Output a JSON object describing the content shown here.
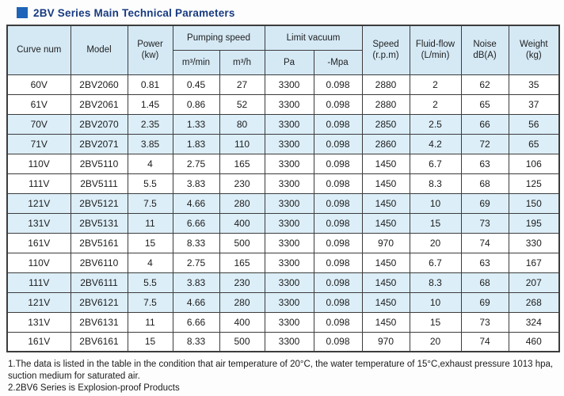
{
  "title": "2BV Series Main Technical Parameters",
  "colors": {
    "title_text": "#173a80",
    "title_square": "#1e64b8",
    "header_bg": "#d5e9f5",
    "shaded_row_bg": "#dceef8",
    "border": "#3c3c3c"
  },
  "table": {
    "headers": {
      "curve_num": "Curve num",
      "model": "Model",
      "power_l1": "Power",
      "power_l2": "(kw)",
      "pumping_speed": "Pumping speed",
      "pumping_sub_min": "m³/min",
      "pumping_sub_h": "m³/h",
      "limit_vacuum": "Limit vacuum",
      "limit_sub_pa": "Pa",
      "limit_sub_mpa": "-Mpa",
      "speed_l1": "Speed",
      "speed_l2": "(r.p.m)",
      "fluid_l1": "Fluid-flow",
      "fluid_l2": "(L/min)",
      "noise_l1": "Noise",
      "noise_l2": "dB(A)",
      "weight_l1": "Weight",
      "weight_l2": "(kg)"
    },
    "rows": [
      {
        "cells": [
          "60V",
          "2BV2060",
          "0.81",
          "0.45",
          "27",
          "3300",
          "0.098",
          "2880",
          "2",
          "62",
          "35"
        ],
        "shaded": false
      },
      {
        "cells": [
          "61V",
          "2BV2061",
          "1.45",
          "0.86",
          "52",
          "3300",
          "0.098",
          "2880",
          "2",
          "65",
          "37"
        ],
        "shaded": false
      },
      {
        "cells": [
          "70V",
          "2BV2070",
          "2.35",
          "1.33",
          "80",
          "3300",
          "0.098",
          "2850",
          "2.5",
          "66",
          "56"
        ],
        "shaded": true
      },
      {
        "cells": [
          "71V",
          "2BV2071",
          "3.85",
          "1.83",
          "110",
          "3300",
          "0.098",
          "2860",
          "4.2",
          "72",
          "65"
        ],
        "shaded": true
      },
      {
        "cells": [
          "110V",
          "2BV5110",
          "4",
          "2.75",
          "165",
          "3300",
          "0.098",
          "1450",
          "6.7",
          "63",
          "106"
        ],
        "shaded": false
      },
      {
        "cells": [
          "111V",
          "2BV5111",
          "5.5",
          "3.83",
          "230",
          "3300",
          "0.098",
          "1450",
          "8.3",
          "68",
          "125"
        ],
        "shaded": false
      },
      {
        "cells": [
          "121V",
          "2BV5121",
          "7.5",
          "4.66",
          "280",
          "3300",
          "0.098",
          "1450",
          "10",
          "69",
          "150"
        ],
        "shaded": true
      },
      {
        "cells": [
          "131V",
          "2BV5131",
          "11",
          "6.66",
          "400",
          "3300",
          "0.098",
          "1450",
          "15",
          "73",
          "195"
        ],
        "shaded": true
      },
      {
        "cells": [
          "161V",
          "2BV5161",
          "15",
          "8.33",
          "500",
          "3300",
          "0.098",
          "970",
          "20",
          "74",
          "330"
        ],
        "shaded": false
      },
      {
        "cells": [
          "110V",
          "2BV6110",
          "4",
          "2.75",
          "165",
          "3300",
          "0.098",
          "1450",
          "6.7",
          "63",
          "167"
        ],
        "shaded": false
      },
      {
        "cells": [
          "111V",
          "2BV6111",
          "5.5",
          "3.83",
          "230",
          "3300",
          "0.098",
          "1450",
          "8.3",
          "68",
          "207"
        ],
        "shaded": true
      },
      {
        "cells": [
          "121V",
          "2BV6121",
          "7.5",
          "4.66",
          "280",
          "3300",
          "0.098",
          "1450",
          "10",
          "69",
          "268"
        ],
        "shaded": true
      },
      {
        "cells": [
          "131V",
          "2BV6131",
          "11",
          "6.66",
          "400",
          "3300",
          "0.098",
          "1450",
          "15",
          "73",
          "324"
        ],
        "shaded": false
      },
      {
        "cells": [
          "161V",
          "2BV6161",
          "15",
          "8.33",
          "500",
          "3300",
          "0.098",
          "970",
          "20",
          "74",
          "460"
        ],
        "shaded": false
      }
    ]
  },
  "notes": {
    "note1": "1.The data is listed in the table in the condition that air temperature of 20°C, the water temperature of 15°C,exhaust pressure 1013 hpa, suction medium for saturated air.",
    "note2": "2.2BV6 Series is Explosion-proof Products"
  }
}
